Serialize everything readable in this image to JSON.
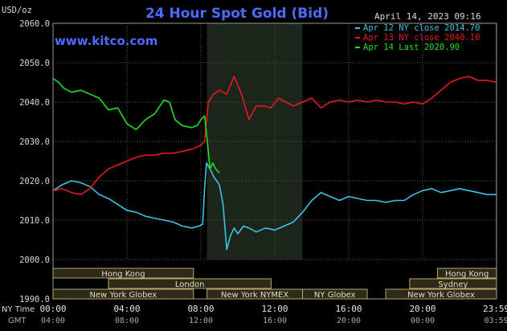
{
  "header": {
    "unit": "USD/oz",
    "title": "24 Hour Spot Gold (Bid)",
    "timestamp": "April 14, 2023 09:16",
    "watermark": "www.kitco.com"
  },
  "colors": {
    "background": "#000000",
    "plot_bg": "#000000",
    "grid": "#5a5a5a",
    "nymex_shade": "#1c241c",
    "title": "#4e6bff",
    "text": "#d8d8d8",
    "series_apr12": "#39c4e8",
    "series_apr13": "#e31b1b",
    "series_apr14": "#22dd22",
    "session_bar": "#2e2a18",
    "session_border": "#b9a66a"
  },
  "sessions": [
    {
      "label": "Hong Kong",
      "start": 0.0,
      "end": 7.6,
      "row": 0
    },
    {
      "label": "Hong Kong",
      "start": 20.8,
      "end": 24.0,
      "row": 0
    },
    {
      "label": "London",
      "start": 3.0,
      "end": 11.8,
      "row": 1
    },
    {
      "label": "Sydney",
      "start": 19.3,
      "end": 24.0,
      "row": 1
    },
    {
      "label": "New York Globex",
      "start": 0.0,
      "end": 7.6,
      "row": 2
    },
    {
      "label": "New York NYMEX",
      "start": 8.33,
      "end": 13.5,
      "row": 2
    },
    {
      "label": "NY Globex",
      "start": 13.5,
      "end": 17.0,
      "row": 2
    },
    {
      "label": "New York Globex",
      "start": 18.0,
      "end": 24.0,
      "row": 2
    }
  ],
  "axis": {
    "ny_time_label": "NY Time",
    "gmt_label": "GMT",
    "gmt_ticks": [
      "04:00",
      "08:00",
      "12:00",
      "16:00",
      "20:00",
      "00:00",
      "03:59"
    ]
  },
  "chart_data": {
    "type": "line",
    "title": "24 Hour Spot Gold (Bid)",
    "ylabel": "USD/oz",
    "xlabel": "NY Time",
    "ylim": [
      1990,
      2060
    ],
    "xlim": [
      0,
      24
    ],
    "y_ticks": [
      "2060.0",
      "2050.0",
      "2040.0",
      "2030.0",
      "2020.0",
      "2010.0",
      "2000.0",
      "1990.0"
    ],
    "y_tick_values": [
      2060,
      2050,
      2040,
      2030,
      2020,
      2010,
      2000,
      1990
    ],
    "x_ticks": [
      "00:00",
      "04:00",
      "08:00",
      "12:00",
      "16:00",
      "20:00",
      "23:59"
    ],
    "x_tick_values": [
      0,
      4,
      8,
      12,
      16,
      20,
      23.98
    ],
    "nymex_shade": [
      8.33,
      13.5
    ],
    "legend_position": "top-right",
    "grid": true,
    "series": [
      {
        "name": "Apr 12 NY close 2014.70",
        "color": "#39c4e8",
        "x": [
          0,
          0.5,
          1.0,
          1.5,
          2.0,
          2.5,
          3.0,
          3.5,
          4.0,
          4.5,
          5.0,
          5.5,
          6.0,
          6.5,
          7.0,
          7.5,
          7.9,
          8.1,
          8.2,
          8.3,
          8.5,
          8.7,
          9.0,
          9.2,
          9.4,
          9.6,
          9.8,
          10.0,
          10.3,
          10.6,
          11.0,
          11.5,
          12.0,
          12.5,
          13.0,
          13.5,
          14.0,
          14.5,
          15.0,
          15.5,
          16.0,
          16.5,
          17.0,
          17.5,
          18.0,
          18.5,
          19.0,
          19.5,
          20.0,
          20.5,
          21.0,
          21.5,
          22.0,
          22.5,
          23.0,
          23.5,
          24.0
        ],
        "y": [
          2017.5,
          2019.0,
          2020.0,
          2019.5,
          2018.5,
          2016.5,
          2015.5,
          2014.0,
          2012.5,
          2012.0,
          2011.0,
          2010.5,
          2010.0,
          2009.5,
          2008.5,
          2008.0,
          2008.5,
          2009.0,
          2018.0,
          2024.5,
          2023.0,
          2021.0,
          2019.0,
          2014.0,
          2002.5,
          2006.0,
          2008.0,
          2006.5,
          2008.5,
          2008.0,
          2007.0,
          2008.0,
          2007.5,
          2008.5,
          2009.5,
          2012.0,
          2015.0,
          2017.0,
          2016.0,
          2015.0,
          2016.0,
          2015.5,
          2015.0,
          2015.0,
          2014.5,
          2015.0,
          2015.0,
          2016.5,
          2017.5,
          2018.0,
          2017.0,
          2017.5,
          2018.0,
          2017.5,
          2017.0,
          2016.5,
          2016.5
        ]
      },
      {
        "name": "Apr 13 NY close 2040.10",
        "color": "#e31b1b",
        "x": [
          0,
          0.5,
          1.0,
          1.5,
          2.0,
          2.5,
          3.0,
          3.5,
          4.0,
          4.5,
          5.0,
          5.5,
          6.0,
          6.5,
          7.0,
          7.5,
          8.0,
          8.2,
          8.4,
          8.7,
          9.0,
          9.4,
          9.8,
          10.2,
          10.6,
          11.0,
          11.4,
          11.8,
          12.2,
          12.6,
          13.0,
          13.5,
          14.0,
          14.5,
          15.0,
          15.5,
          16.0,
          16.5,
          17.0,
          17.5,
          18.0,
          18.5,
          19.0,
          19.5,
          20.0,
          20.5,
          21.0,
          21.5,
          22.0,
          22.5,
          23.0,
          23.5,
          24.0
        ],
        "y": [
          2017.5,
          2018.0,
          2017.0,
          2016.5,
          2018.0,
          2021.0,
          2023.0,
          2024.0,
          2025.0,
          2026.0,
          2026.5,
          2026.5,
          2027.0,
          2027.0,
          2027.5,
          2028.0,
          2029.0,
          2030.0,
          2040.0,
          2042.0,
          2043.0,
          2042.0,
          2046.5,
          2042.0,
          2035.5,
          2039.0,
          2039.0,
          2038.5,
          2041.0,
          2040.0,
          2039.0,
          2040.0,
          2041.0,
          2038.5,
          2040.0,
          2040.5,
          2040.0,
          2040.5,
          2040.0,
          2040.5,
          2040.0,
          2040.0,
          2039.5,
          2040.0,
          2039.5,
          2041.0,
          2043.0,
          2045.0,
          2046.0,
          2046.5,
          2045.5,
          2045.5,
          2045.0
        ]
      },
      {
        "name": "Apr 14 Last 2020.90",
        "color": "#22dd22",
        "x": [
          0,
          0.3,
          0.6,
          1.0,
          1.5,
          2.0,
          2.5,
          3.0,
          3.5,
          4.0,
          4.5,
          5.0,
          5.5,
          6.0,
          6.3,
          6.6,
          7.0,
          7.5,
          7.8,
          8.0,
          8.2,
          8.35,
          8.5,
          8.65,
          8.8,
          9.0
        ],
        "y": [
          2046.0,
          2045.0,
          2043.5,
          2042.5,
          2043.0,
          2042.0,
          2041.0,
          2038.0,
          2038.5,
          2034.5,
          2033.0,
          2035.5,
          2037.0,
          2040.5,
          2040.0,
          2035.5,
          2034.0,
          2033.5,
          2034.0,
          2035.5,
          2036.5,
          2030.0,
          2023.0,
          2024.5,
          2023.0,
          2022.0
        ]
      }
    ]
  }
}
